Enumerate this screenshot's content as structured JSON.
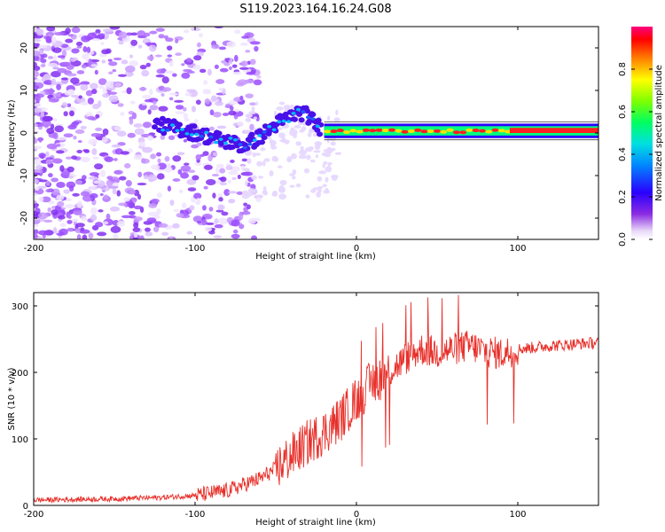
{
  "title": "S119.2023.164.16.24.G08",
  "chart_data": [
    {
      "type": "heatmap",
      "title": "S119.2023.164.16.24.G08",
      "xlabel": "Height of straight line (km)",
      "ylabel": "Frequency (Hz)",
      "xlim": [
        -200,
        150
      ],
      "ylim": [
        -25,
        25
      ],
      "xticks": [
        -200,
        -100,
        0,
        100
      ],
      "xtick_labels": [
        "-200",
        "-100",
        "0",
        "100"
      ],
      "yticks": [
        -20,
        -10,
        0,
        10,
        20
      ],
      "ytick_labels": [
        "-20",
        "-10",
        "0",
        "10",
        "20"
      ],
      "colorbar": {
        "label": "Normalized spectral amplitude",
        "range": [
          0.0,
          1.0
        ],
        "ticks": [
          0.0,
          0.2,
          0.4,
          0.6,
          0.8
        ],
        "tick_labels": [
          "0.0",
          "0.2",
          "0.4",
          "0.6",
          "0.8"
        ]
      },
      "ridge": {
        "description_x": [
          -125,
          -110,
          -100,
          -90,
          -80,
          -70,
          -60,
          -50,
          -40,
          -35,
          -30,
          -25,
          -20,
          -10,
          0,
          20,
          50,
          80,
          100,
          150
        ],
        "frequency_hz": [
          2,
          1,
          0,
          -1,
          -2,
          -3,
          -1,
          2,
          4,
          5,
          4,
          2,
          0.5,
          0,
          0.5,
          0.5,
          0.5,
          0.5,
          1,
          1
        ]
      }
    },
    {
      "type": "line",
      "xlabel": "Height of straight line (km)",
      "ylabel": "SNR (10 * v/v)",
      "xlim": [
        -200,
        150
      ],
      "ylim": [
        0,
        320
      ],
      "xticks": [
        -200,
        -100,
        0,
        100
      ],
      "xtick_labels": [
        "-200",
        "-100",
        "0",
        "100"
      ],
      "yticks": [
        0,
        100,
        200,
        300
      ],
      "ytick_labels": [
        "0",
        "100",
        "200",
        "300"
      ],
      "color": "#e8302a",
      "trend_x": [
        -200,
        -150,
        -120,
        -100,
        -80,
        -60,
        -50,
        -40,
        -30,
        -20,
        -10,
        0,
        10,
        20,
        30,
        40,
        50,
        60,
        70,
        80,
        90,
        100,
        120,
        150
      ],
      "trend_y": [
        8,
        10,
        12,
        15,
        22,
        40,
        55,
        75,
        95,
        110,
        130,
        160,
        185,
        200,
        220,
        235,
        230,
        235,
        240,
        232,
        228,
        235,
        240,
        245
      ]
    }
  ]
}
